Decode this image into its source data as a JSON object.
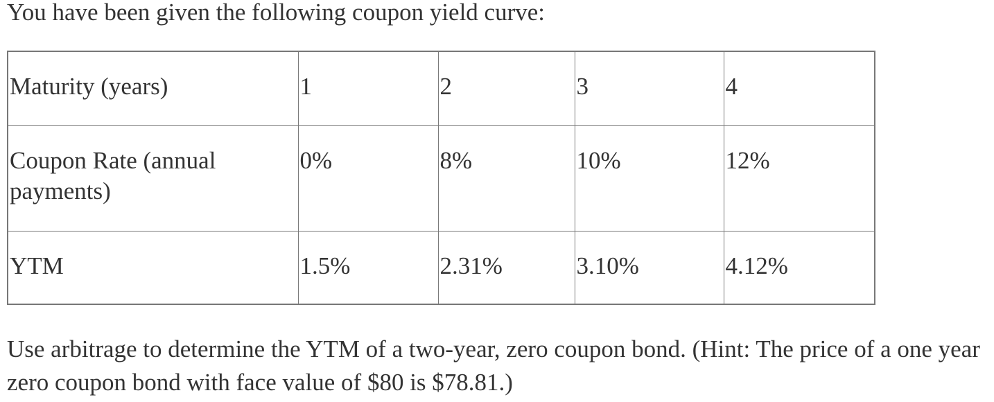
{
  "intro": "You have been given the following coupon yield curve:",
  "table": {
    "rows": [
      [
        "Maturity (years)",
        "1",
        "2",
        "3",
        "4"
      ],
      [
        "Coupon Rate (annual payments)",
        "0%",
        "8%",
        "10%",
        "12%"
      ],
      [
        "YTM",
        "1.5%",
        "2.31%",
        "3.10%",
        "4.12%"
      ]
    ]
  },
  "question": "Use arbitrage to determine the YTM of a two-year, zero coupon bond. (Hint: The price of a one year zero coupon bond with face value of $80 is $78.81.)"
}
